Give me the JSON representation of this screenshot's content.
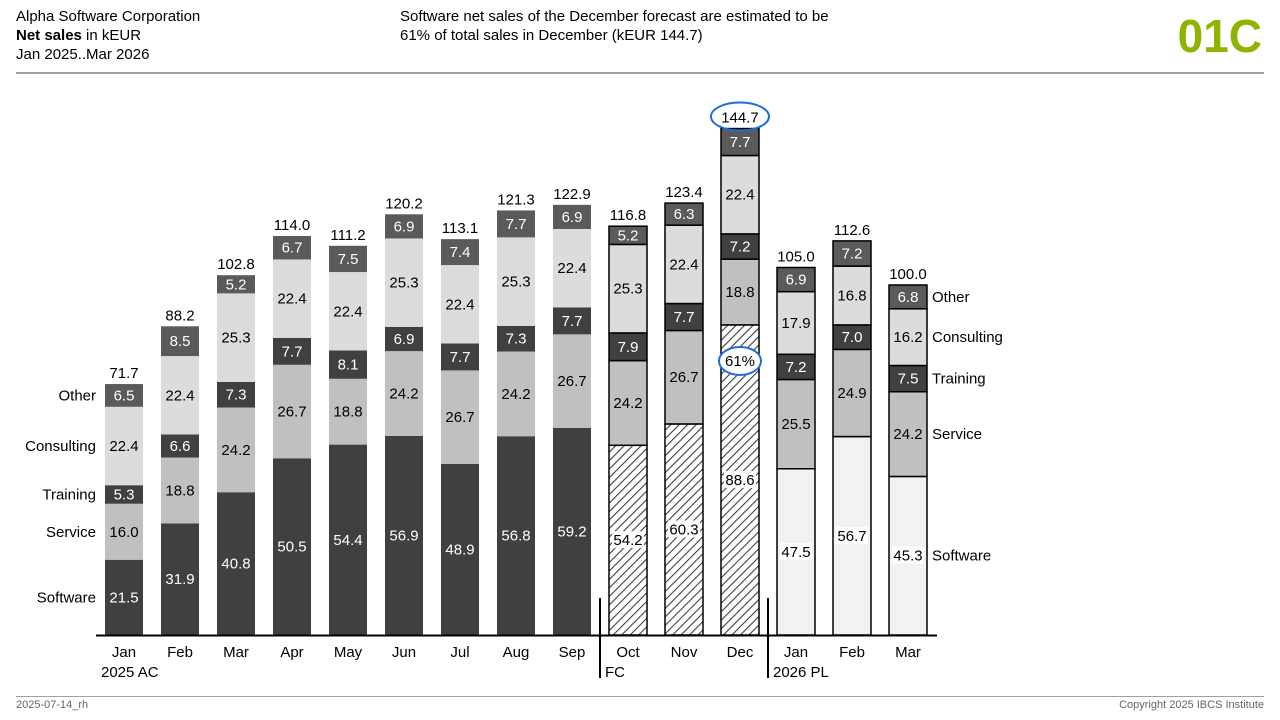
{
  "header": {
    "company": "Alpha Software Corporation",
    "measure_bold": "Net sales",
    "measure_unit": " in kEUR",
    "period": "Jan 2025..Mar 2026",
    "message_line1": "Software net sales of the December forecast are estimated to be",
    "message_line2": "61% of total sales in December (kEUR 144.7)",
    "page_id": "01C"
  },
  "footer": {
    "date_code": "2025-07-14_rh",
    "copyright": "Copyright 2025 IBCS Institute"
  },
  "colors": {
    "software_ac": "#404040",
    "service": "#c0c0c0",
    "training": "#404040",
    "consulting": "#dcdcdc",
    "other": "#5a5a5a",
    "plan_fill": "#f2f2f2",
    "highlight": "#1f6fd6",
    "page_id": "#8cb400"
  },
  "chart_data": {
    "type": "bar",
    "stacked": true,
    "categories": [
      "Jan",
      "Feb",
      "Mar",
      "Apr",
      "May",
      "Jun",
      "Jul",
      "Aug",
      "Sep",
      "Oct",
      "Nov",
      "Dec",
      "Jan",
      "Feb",
      "Mar"
    ],
    "scenario": [
      "AC",
      "AC",
      "AC",
      "AC",
      "AC",
      "AC",
      "AC",
      "AC",
      "AC",
      "FC",
      "FC",
      "FC",
      "PL",
      "PL",
      "PL"
    ],
    "period_labels": [
      {
        "index": 0,
        "text": "2025 AC"
      },
      {
        "index": 9,
        "text": "FC"
      },
      {
        "index": 12,
        "text": "2026 PL"
      }
    ],
    "series": [
      {
        "name": "Software",
        "values": [
          21.5,
          31.9,
          40.8,
          50.5,
          54.4,
          56.9,
          48.9,
          56.8,
          59.2,
          54.2,
          60.3,
          88.6,
          47.5,
          56.7,
          45.3
        ]
      },
      {
        "name": "Service",
        "values": [
          16.0,
          18.8,
          24.2,
          26.7,
          18.8,
          24.2,
          26.7,
          24.2,
          26.7,
          24.2,
          26.7,
          18.8,
          25.5,
          24.9,
          24.2
        ]
      },
      {
        "name": "Training",
        "values": [
          5.3,
          6.6,
          7.3,
          7.7,
          8.1,
          6.9,
          7.7,
          7.3,
          7.7,
          7.9,
          7.7,
          7.2,
          7.2,
          7.0,
          7.5
        ]
      },
      {
        "name": "Consulting",
        "values": [
          22.4,
          22.4,
          25.3,
          22.4,
          22.4,
          25.3,
          22.4,
          25.3,
          22.4,
          25.3,
          22.4,
          22.4,
          17.9,
          16.8,
          16.2
        ]
      },
      {
        "name": "Other",
        "values": [
          6.5,
          8.5,
          5.2,
          6.7,
          7.5,
          6.9,
          7.4,
          7.7,
          6.9,
          5.2,
          6.3,
          7.7,
          6.9,
          7.2,
          6.8
        ]
      }
    ],
    "totals": [
      71.7,
      88.2,
      102.8,
      114.0,
      111.2,
      120.2,
      113.1,
      121.3,
      122.9,
      116.8,
      123.4,
      144.7,
      105.0,
      112.6,
      100.0
    ],
    "highlights": [
      {
        "index": 11,
        "target": "total",
        "text": "144.7"
      },
      {
        "index": 11,
        "target": "software",
        "text": "61%"
      }
    ],
    "legend_left": true,
    "legend_right": true,
    "ylim": [
      0,
      160
    ]
  }
}
